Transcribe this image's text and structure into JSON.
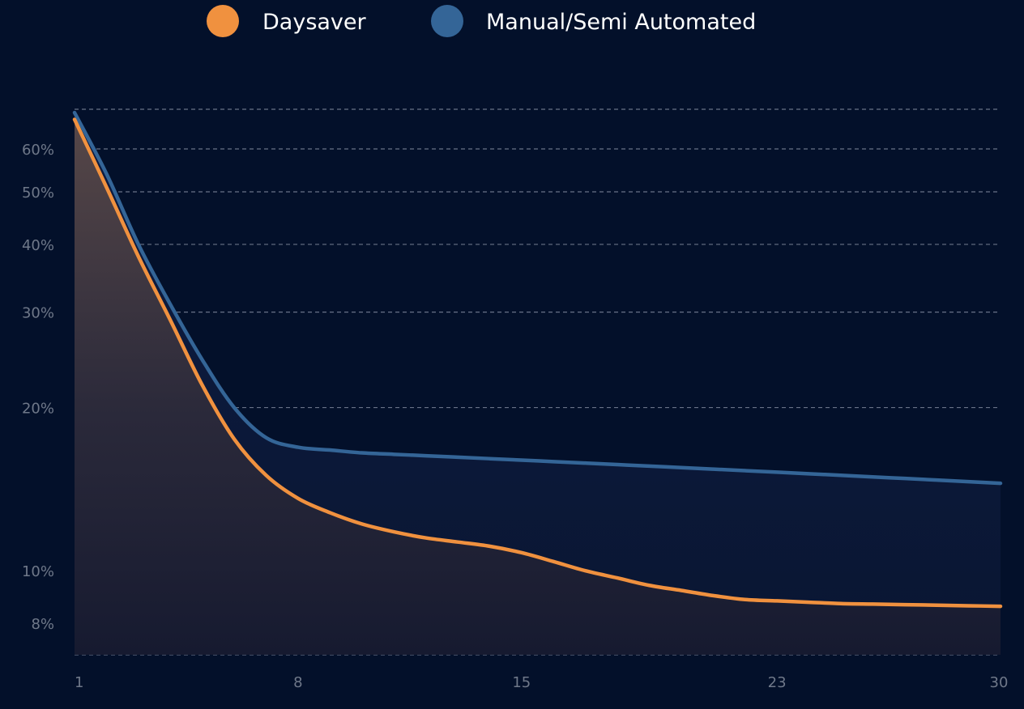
{
  "chart_data": {
    "type": "area",
    "title": "",
    "xlabel": "",
    "ylabel": "",
    "x_scale": "linear",
    "y_scale": "log",
    "xlim": [
      1,
      30
    ],
    "ylim": [
      7,
      71
    ],
    "x_ticks": [
      1,
      8,
      15,
      23,
      30
    ],
    "x_tick_labels": [
      "1",
      "8",
      "15",
      "23",
      "30"
    ],
    "y_ticks": [
      8,
      10,
      20,
      30,
      40,
      50,
      60
    ],
    "y_tick_labels": [
      "8%",
      "10%",
      "20%",
      "30%",
      "40%",
      "50%",
      "60%"
    ],
    "grid": true,
    "legend": "top-center",
    "series": [
      {
        "name": "Daysaver",
        "color": "#f0913f",
        "x": [
          1,
          2,
          3,
          4,
          5,
          6,
          7,
          8,
          9,
          10,
          11,
          12,
          13,
          14,
          15,
          16,
          17,
          18,
          19,
          20,
          21,
          22,
          23,
          24,
          25,
          26,
          27,
          28,
          29,
          30
        ],
        "values": [
          68,
          51,
          38,
          29,
          22,
          17.5,
          15.0,
          13.6,
          12.8,
          12.2,
          11.8,
          11.5,
          11.3,
          11.1,
          10.8,
          10.4,
          10.0,
          9.7,
          9.4,
          9.2,
          9.0,
          8.85,
          8.8,
          8.75,
          8.7,
          8.68,
          8.66,
          8.64,
          8.62,
          8.6
        ]
      },
      {
        "name": "Manual/Semi Automated",
        "color": "#346597",
        "x": [
          1,
          2,
          3,
          4,
          5,
          6,
          7,
          8,
          9,
          10,
          11,
          12,
          13,
          14,
          15,
          16,
          17,
          18,
          19,
          20,
          21,
          22,
          23,
          24,
          25,
          26,
          27,
          28,
          29,
          30
        ],
        "values": [
          70,
          54,
          40,
          31,
          24.5,
          20,
          17.6,
          16.9,
          16.7,
          16.5,
          16.4,
          16.3,
          16.2,
          16.1,
          16.0,
          15.9,
          15.8,
          15.7,
          15.6,
          15.5,
          15.4,
          15.3,
          15.2,
          15.1,
          15.0,
          14.9,
          14.8,
          14.7,
          14.6,
          14.5
        ]
      }
    ]
  }
}
